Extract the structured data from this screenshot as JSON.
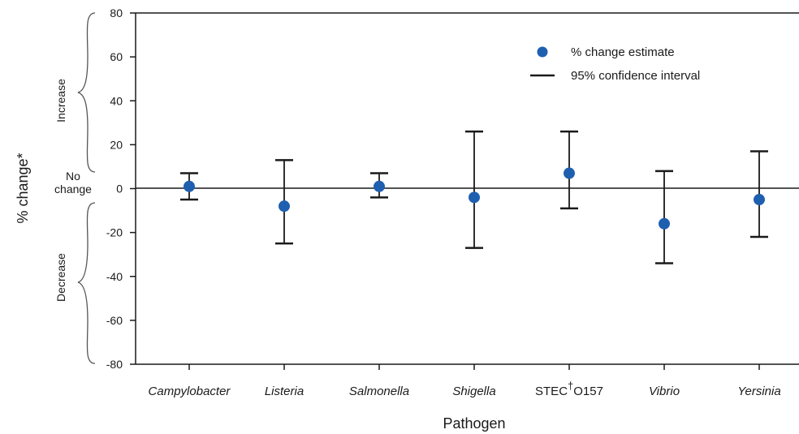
{
  "chart_data": {
    "type": "scatter",
    "title": "",
    "xlabel": "Pathogen",
    "ylabel": "% change*",
    "ylim": [
      -80,
      80
    ],
    "yticks": [
      80,
      60,
      40,
      20,
      0,
      -20,
      -40,
      -60,
      -80
    ],
    "categories": [
      "Campylobacter",
      "Listeria",
      "Salmonella",
      "Shigella",
      "STEC†O157",
      "Vibrio",
      "Yersinia"
    ],
    "category_display": [
      {
        "main": "Campylobacter",
        "italic": true
      },
      {
        "main": "Listeria",
        "italic": true
      },
      {
        "main": "Salmonella",
        "italic": true
      },
      {
        "main": "Shigella",
        "italic": true
      },
      {
        "main": "STEC",
        "super": "†",
        "rest": "O157",
        "italic": false
      },
      {
        "main": "Vibrio",
        "italic": true
      },
      {
        "main": "Yersinia",
        "italic": true
      }
    ],
    "series": [
      {
        "name": "% change estimate",
        "values": [
          1,
          -8,
          1,
          -4,
          7,
          -16,
          -5
        ],
        "ci_low": [
          -5,
          -25,
          -4,
          -27,
          -9,
          -34,
          -22
        ],
        "ci_high": [
          7,
          13,
          7,
          26,
          26,
          8,
          17
        ]
      }
    ],
    "legend": {
      "position": "top-right",
      "entries": [
        "% change estimate",
        "95% confidence interval"
      ]
    },
    "region_labels": {
      "increase": "Increase",
      "no_change_line1": "No",
      "no_change_line2": "change",
      "decrease": "Decrease"
    },
    "grid": false,
    "colors": {
      "point": "#1f5fb0",
      "ci": "#1a1a1a",
      "axis": "#1a1a1a"
    }
  }
}
